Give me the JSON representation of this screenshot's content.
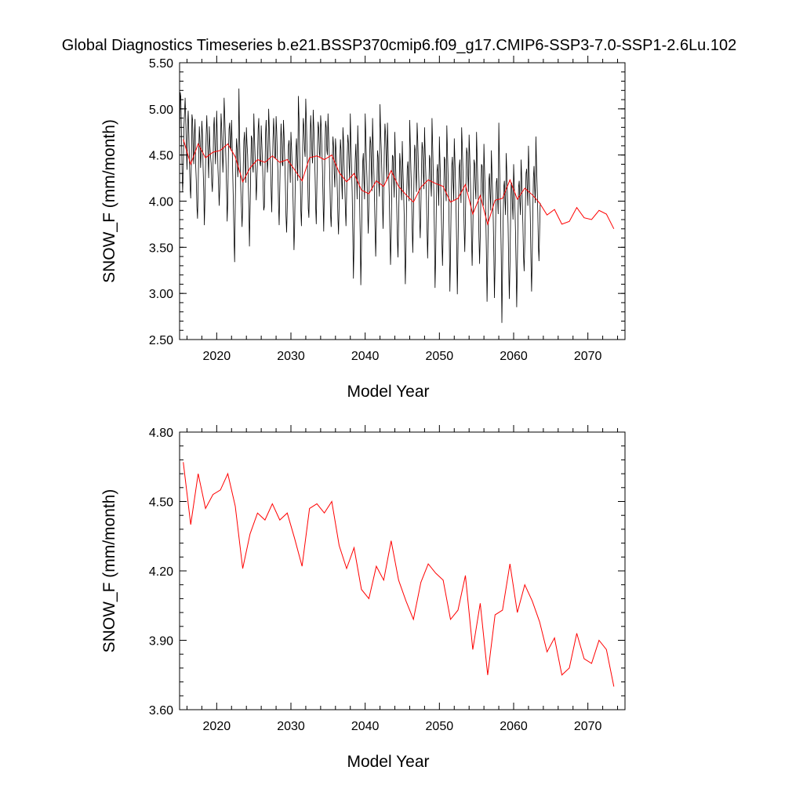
{
  "figure": {
    "title": "Global Diagnostics Timeseries b.e21.BSSP370cmip6.f09_g17.CMIP6-SSP3-7.0-SSP1-2.6Lu.102"
  },
  "chart_data": [
    {
      "type": "line",
      "panel": "top",
      "xlabel": "Model Year",
      "ylabel": "SNOW_F (mm/month)",
      "xlim": [
        2015,
        2075
      ],
      "ylim": [
        2.5,
        5.5
      ],
      "x_ticks": [
        2020,
        2030,
        2040,
        2050,
        2060,
        2070
      ],
      "x_tick_labels": [
        "2020",
        "2030",
        "2040",
        "2050",
        "2060",
        "2070"
      ],
      "y_ticks": [
        2.5,
        3.0,
        3.5,
        4.0,
        4.5,
        5.0,
        5.5
      ],
      "y_tick_labels": [
        "2.50",
        "3.00",
        "3.50",
        "4.00",
        "4.50",
        "5.00",
        "5.50"
      ],
      "grid": false,
      "monthly_line_color": "#000000",
      "annual_line_color": "#ff0000",
      "annual_x": [
        2015.5,
        2016.5,
        2017.5,
        2018.5,
        2019.5,
        2020.5,
        2021.5,
        2022.5,
        2023.5,
        2024.5,
        2025.5,
        2026.5,
        2027.5,
        2028.5,
        2029.5,
        2030.5,
        2031.5,
        2032.5,
        2033.5,
        2034.5,
        2035.5,
        2036.5,
        2037.5,
        2038.5,
        2039.5,
        2040.5,
        2041.5,
        2042.5,
        2043.5,
        2044.5,
        2045.5,
        2046.5,
        2047.5,
        2048.5,
        2049.5,
        2050.5,
        2051.5,
        2052.5,
        2053.5,
        2054.5,
        2055.5,
        2056.5,
        2057.5,
        2058.5,
        2059.5,
        2060.5,
        2061.5,
        2062.5,
        2063.5,
        2064.5,
        2065.5,
        2066.5,
        2067.5,
        2068.5,
        2069.5,
        2070.5,
        2071.5,
        2072.5,
        2073.5
      ],
      "annual_y": [
        4.67,
        4.4,
        4.62,
        4.47,
        4.53,
        4.55,
        4.62,
        4.48,
        4.21,
        4.36,
        4.45,
        4.42,
        4.49,
        4.42,
        4.45,
        4.34,
        4.22,
        4.47,
        4.49,
        4.45,
        4.5,
        4.31,
        4.21,
        4.3,
        4.12,
        4.08,
        4.22,
        4.16,
        4.33,
        4.16,
        4.07,
        3.99,
        4.15,
        4.23,
        4.19,
        4.16,
        3.99,
        4.03,
        4.18,
        3.86,
        4.06,
        3.75,
        4.01,
        4.03,
        4.23,
        4.02,
        4.14,
        4.07,
        3.98,
        3.85,
        3.91,
        3.75,
        3.78,
        3.93,
        3.82,
        3.8,
        3.9,
        3.86,
        3.7
      ],
      "monthly_x_start": 2015.0,
      "monthly_step": 0.0833333,
      "monthly_y": [
        4.55,
        5.18,
        5.13,
        4.72,
        4.33,
        4.1,
        4.32,
        4.79,
        4.96,
        5.12,
        4.87,
        4.56,
        4.34,
        4.83,
        4.98,
        4.73,
        4.42,
        4.15,
        4.03,
        4.42,
        4.94,
        4.88,
        4.51,
        4.4,
        4.72,
        4.89,
        4.4,
        4.22,
        3.94,
        3.81,
        4.15,
        4.57,
        4.81,
        4.64,
        4.36,
        4.55,
        4.87,
        4.72,
        4.36,
        4.12,
        3.74,
        4.0,
        4.36,
        4.71,
        4.93,
        4.69,
        4.48,
        4.25,
        4.81,
        4.6,
        4.5,
        4.41,
        4.21,
        4.1,
        4.33,
        4.8,
        4.91,
        4.62,
        4.4,
        4.62,
        4.98,
        4.71,
        4.36,
        4.18,
        3.95,
        4.15,
        4.52,
        4.95,
        4.82,
        4.6,
        4.31,
        4.53,
        5.12,
        4.92,
        4.68,
        4.41,
        4.1,
        3.78,
        4.01,
        4.52,
        4.78,
        4.85,
        4.6,
        4.55,
        4.88,
        4.6,
        4.29,
        3.98,
        3.6,
        3.34,
        3.95,
        4.4,
        4.68,
        4.56,
        4.26,
        4.4,
        5.22,
        4.7,
        4.38,
        4.12,
        3.92,
        3.72,
        3.95,
        4.41,
        4.65,
        4.75,
        4.42,
        4.2,
        4.8,
        4.62,
        4.5,
        4.22,
        3.91,
        3.51,
        3.9,
        4.31,
        4.71,
        4.68,
        4.38,
        4.31,
        4.95,
        4.7,
        4.51,
        4.3,
        4.01,
        4.22,
        4.46,
        4.78,
        4.9,
        4.52,
        4.41,
        4.38,
        4.82,
        4.62,
        4.42,
        4.18,
        3.9,
        3.94,
        4.3,
        4.74,
        4.88,
        4.6,
        4.31,
        4.45,
        5.0,
        4.79,
        4.55,
        4.39,
        4.1,
        3.88,
        4.25,
        4.66,
        4.9,
        4.71,
        4.48,
        4.46,
        4.92,
        4.75,
        4.52,
        4.32,
        3.96,
        3.74,
        4.13,
        4.55,
        4.84,
        4.65,
        4.4,
        4.38,
        4.88,
        4.7,
        4.45,
        4.2,
        3.84,
        3.66,
        3.93,
        4.32,
        4.6,
        4.66,
        4.43,
        4.2,
        4.75,
        4.58,
        4.38,
        4.14,
        3.82,
        3.47,
        3.71,
        4.2,
        4.55,
        4.68,
        4.42,
        4.22,
        5.14,
        4.9,
        4.6,
        4.32,
        3.9,
        3.73,
        4.1,
        4.6,
        4.9,
        4.8,
        4.55,
        4.48,
        5.11,
        4.88,
        4.56,
        4.3,
        3.92,
        3.82,
        4.22,
        4.66,
        4.93,
        4.75,
        4.51,
        4.41,
        4.99,
        4.8,
        4.55,
        4.28,
        3.92,
        3.75,
        4.16,
        4.6,
        4.86,
        4.78,
        4.52,
        4.47,
        4.93,
        4.8,
        4.6,
        4.35,
        4.0,
        3.67,
        4.11,
        4.58,
        4.87,
        4.8,
        4.55,
        4.5,
        4.95,
        4.71,
        4.5,
        4.21,
        3.86,
        3.72,
        4.02,
        4.48,
        4.7,
        4.59,
        4.3,
        4.15,
        4.68,
        4.55,
        4.36,
        4.1,
        3.8,
        3.64,
        3.97,
        4.38,
        4.67,
        4.55,
        4.22,
        4.02,
        4.8,
        4.66,
        4.39,
        4.2,
        3.92,
        3.73,
        4.06,
        4.48,
        4.72,
        4.62,
        4.38,
        4.23,
        4.95,
        4.64,
        4.38,
        4.1,
        3.66,
        3.16,
        3.55,
        4.1,
        4.45,
        4.62,
        4.33,
        4.02,
        4.82,
        4.55,
        4.28,
        4.0,
        3.6,
        3.09,
        3.48,
        4.05,
        4.42,
        4.52,
        4.24,
        4.02,
        4.95,
        4.71,
        4.45,
        4.25,
        3.92,
        3.65,
        3.96,
        4.42,
        4.7,
        4.63,
        4.34,
        4.11,
        4.9,
        4.6,
        4.35,
        4.05,
        3.7,
        3.4,
        3.75,
        4.18,
        4.55,
        4.48,
        4.2,
        4.05,
        5.05,
        4.76,
        4.56,
        4.3,
        3.96,
        3.7,
        4.08,
        4.55,
        4.84,
        4.72,
        4.45,
        4.22,
        4.85,
        4.55,
        4.32,
        4.05,
        3.66,
        3.31,
        3.6,
        4.15,
        4.5,
        4.48,
        4.22,
        4.04,
        4.75,
        4.45,
        4.21,
        3.95,
        3.61,
        3.39,
        3.75,
        4.2,
        4.52,
        4.4,
        4.15,
        4.01,
        4.65,
        4.35,
        4.12,
        3.85,
        3.44,
        3.1,
        3.48,
        4.0,
        4.35,
        4.43,
        4.22,
        4.0,
        4.88,
        4.6,
        4.34,
        4.11,
        3.71,
        3.44,
        3.82,
        4.28,
        4.61,
        4.55,
        4.28,
        4.1,
        4.85,
        4.66,
        4.4,
        4.15,
        3.81,
        3.6,
        3.92,
        4.36,
        4.64,
        4.57,
        4.31,
        4.13,
        4.8,
        4.52,
        4.3,
        4.05,
        3.68,
        3.38,
        3.7,
        4.15,
        4.5,
        4.45,
        4.2,
        4.05,
        4.9,
        4.61,
        4.35,
        4.1,
        3.65,
        3.06,
        3.4,
        3.95,
        4.32,
        4.4,
        4.15,
        3.95,
        4.7,
        4.42,
        4.18,
        3.92,
        3.58,
        3.3,
        3.64,
        4.1,
        4.48,
        4.45,
        4.18,
        4.0,
        4.82,
        4.55,
        4.28,
        4.02,
        3.56,
        3.02,
        3.4,
        3.98,
        4.38,
        4.48,
        4.21,
        4.01,
        4.68,
        4.45,
        4.22,
        3.9,
        3.5,
        2.99,
        3.45,
        4.0,
        4.36,
        4.45,
        4.18,
        3.98,
        4.8,
        4.6,
        4.35,
        4.08,
        3.7,
        3.45,
        3.8,
        4.25,
        4.58,
        4.52,
        4.28,
        4.1,
        4.72,
        4.5,
        4.25,
        3.96,
        3.55,
        3.3,
        3.65,
        4.1,
        4.45,
        4.4,
        4.15,
        4.02,
        4.75,
        4.48,
        4.22,
        3.98,
        3.6,
        3.32,
        3.62,
        4.06,
        4.4,
        4.38,
        4.12,
        3.95,
        4.62,
        4.35,
        4.1,
        3.84,
        3.42,
        2.91,
        3.32,
        3.85,
        4.22,
        4.3,
        4.08,
        3.9,
        4.55,
        4.3,
        4.08,
        3.8,
        3.4,
        2.95,
        3.3,
        3.8,
        4.2,
        4.25,
        4.02,
        3.86,
        4.85,
        4.45,
        4.15,
        3.85,
        3.4,
        2.68,
        3.22,
        3.78,
        4.15,
        4.22,
        4.0,
        3.85,
        4.52,
        4.32,
        4.05,
        3.75,
        3.3,
        2.94,
        3.3,
        3.8,
        4.18,
        4.2,
        3.96,
        3.8,
        4.4,
        4.18,
        3.95,
        3.66,
        3.25,
        2.85,
        3.28,
        3.8,
        4.15,
        4.22,
        4.0,
        3.85,
        4.45,
        4.25,
        4.02,
        3.75,
        3.4,
        3.24,
        3.55,
        3.95,
        4.3,
        4.35,
        4.12,
        3.95,
        4.6,
        4.35,
        4.1,
        3.8,
        3.35,
        3.02,
        3.4,
        3.9,
        4.25,
        4.38,
        4.15,
        3.98,
        4.7,
        4.4,
        4.15,
        3.88,
        3.5,
        3.35,
        3.66,
        3.98
      ]
    },
    {
      "type": "line",
      "panel": "bottom",
      "xlabel": "Model Year",
      "ylabel": "SNOW_F (mm/month)",
      "xlim": [
        2015,
        2075
      ],
      "ylim": [
        3.6,
        4.8
      ],
      "x_ticks": [
        2020,
        2030,
        2040,
        2050,
        2060,
        2070
      ],
      "x_tick_labels": [
        "2020",
        "2030",
        "2040",
        "2050",
        "2060",
        "2070"
      ],
      "y_ticks": [
        3.6,
        3.9,
        4.2,
        4.5,
        4.8
      ],
      "y_tick_labels": [
        "3.60",
        "3.90",
        "4.20",
        "4.50",
        "4.80"
      ],
      "grid": false,
      "line_color": "#ff0000",
      "x": [
        2015.5,
        2016.5,
        2017.5,
        2018.5,
        2019.5,
        2020.5,
        2021.5,
        2022.5,
        2023.5,
        2024.5,
        2025.5,
        2026.5,
        2027.5,
        2028.5,
        2029.5,
        2030.5,
        2031.5,
        2032.5,
        2033.5,
        2034.5,
        2035.5,
        2036.5,
        2037.5,
        2038.5,
        2039.5,
        2040.5,
        2041.5,
        2042.5,
        2043.5,
        2044.5,
        2045.5,
        2046.5,
        2047.5,
        2048.5,
        2049.5,
        2050.5,
        2051.5,
        2052.5,
        2053.5,
        2054.5,
        2055.5,
        2056.5,
        2057.5,
        2058.5,
        2059.5,
        2060.5,
        2061.5,
        2062.5,
        2063.5,
        2064.5,
        2065.5,
        2066.5,
        2067.5,
        2068.5,
        2069.5,
        2070.5,
        2071.5,
        2072.5,
        2073.5
      ],
      "y": [
        4.67,
        4.4,
        4.62,
        4.47,
        4.53,
        4.55,
        4.62,
        4.48,
        4.21,
        4.36,
        4.45,
        4.42,
        4.49,
        4.42,
        4.45,
        4.34,
        4.22,
        4.47,
        4.49,
        4.45,
        4.5,
        4.31,
        4.21,
        4.3,
        4.12,
        4.08,
        4.22,
        4.16,
        4.33,
        4.16,
        4.07,
        3.99,
        4.15,
        4.23,
        4.19,
        4.16,
        3.99,
        4.03,
        4.18,
        3.86,
        4.06,
        3.75,
        4.01,
        4.03,
        4.23,
        4.02,
        4.14,
        4.07,
        3.98,
        3.85,
        3.91,
        3.75,
        3.78,
        3.93,
        3.82,
        3.8,
        3.9,
        3.86,
        3.7
      ]
    }
  ]
}
